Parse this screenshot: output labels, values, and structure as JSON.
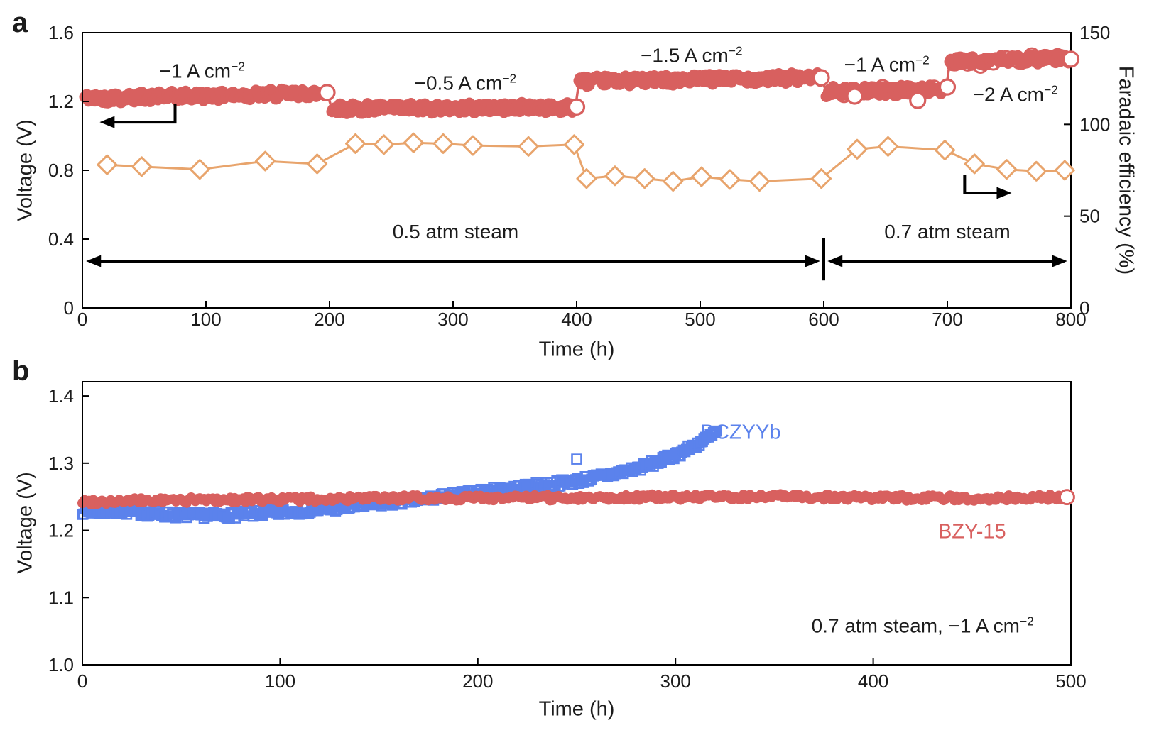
{
  "figure": {
    "background": "#ffffff"
  },
  "colors": {
    "voltage": "#d8605f",
    "faradaic": "#e8a46c",
    "bczyyb": "#5b82ec",
    "bzy15": "#d8605f",
    "axis": "#000000",
    "text": "#1c1c1c"
  },
  "chart_data": {
    "panel_a": {
      "panel_label": "a",
      "type": "scatter",
      "xlabel": "Time (h)",
      "x_range": [
        0,
        800
      ],
      "x_tick_values": [
        0,
        100,
        200,
        300,
        400,
        500,
        600,
        700,
        800
      ],
      "x_tick_labels": [
        "0",
        "100",
        "200",
        "300",
        "400",
        "500",
        "600",
        "700",
        "800"
      ],
      "ylabel_left": "Voltage (V)",
      "y_left_range": [
        0,
        1.6
      ],
      "y_left_tick_values": [
        0,
        0.4,
        0.8,
        1.2,
        1.6
      ],
      "y_left_tick_labels": [
        "0",
        "0.4",
        "0.8",
        "1.2",
        "1.6"
      ],
      "ylabel_right": "Faradaic efficiency (%)",
      "y_right_range": [
        0,
        150
      ],
      "y_right_tick_values": [
        0,
        50,
        100,
        150
      ],
      "y_right_tick_labels": [
        "0",
        "50",
        "100",
        "150"
      ],
      "voltage_color": "#d8605f",
      "fe_color": "#e8a46c",
      "voltage_segments": [
        {
          "label_text": "−1 A cm",
          "label_sup": "−2",
          "label_t": 97,
          "label_v": 1.377,
          "t_start": 2,
          "t_end": 198,
          "v_start": 1.218,
          "v_end": 1.248,
          "rings": false
        },
        {
          "label_text": "−0.5 A cm",
          "label_sup": "−2",
          "label_t": 310,
          "label_v": 1.307,
          "t_start": 202,
          "t_end": 399,
          "v_start": 1.157,
          "v_end": 1.166,
          "rings": false
        },
        {
          "label_text": "−1.5 A cm",
          "label_sup": "−2",
          "label_t": 493,
          "label_v": 1.468,
          "t_start": 402,
          "t_end": 598,
          "v_start": 1.318,
          "v_end": 1.338,
          "rings": false
        },
        {
          "label_text": "−1 A cm",
          "label_sup": "−2",
          "label_t": 651,
          "label_v": 1.415,
          "t_start": 602,
          "t_end": 699,
          "v_start": 1.256,
          "v_end": 1.272,
          "rings": true
        },
        {
          "label_text": "−2 A cm",
          "label_sup": "−2",
          "label_t": 755,
          "label_v": 1.243,
          "t_start": 702,
          "t_end": 799,
          "v_start": 1.43,
          "v_end": 1.452,
          "rings": true
        }
      ],
      "open_markers": [
        [
          198,
          1.252
        ],
        [
          400,
          1.168
        ],
        [
          598,
          1.338
        ],
        [
          625,
          1.231
        ],
        [
          676,
          1.206
        ],
        [
          700,
          1.284
        ],
        [
          800,
          1.446
        ]
      ],
      "faradaic_points": [
        [
          20,
          78
        ],
        [
          48,
          77
        ],
        [
          95,
          75.5
        ],
        [
          148,
          80
        ],
        [
          190,
          78.5
        ],
        [
          221,
          89.5
        ],
        [
          244,
          89
        ],
        [
          268,
          90
        ],
        [
          292,
          89.5
        ],
        [
          316,
          88.5
        ],
        [
          361,
          88
        ],
        [
          398,
          89
        ],
        [
          408,
          70.5
        ],
        [
          431,
          72
        ],
        [
          455,
          70.5
        ],
        [
          478,
          69
        ],
        [
          501,
          71.5
        ],
        [
          524,
          70
        ],
        [
          548,
          69
        ],
        [
          598,
          70.5
        ],
        [
          627,
          86.5
        ],
        [
          652,
          88
        ],
        [
          698,
          86
        ],
        [
          722,
          78.5
        ],
        [
          748,
          75.5
        ],
        [
          772,
          74.5
        ],
        [
          795,
          75
        ]
      ],
      "steam_regions": [
        {
          "label": "0.5 atm steam",
          "t_start": 3,
          "t_end": 597,
          "label_t": 302
        },
        {
          "label": "0.7 atm steam",
          "t_start": 603,
          "t_end": 797,
          "label_t": 700
        }
      ],
      "steam_arrow_v": 0.272,
      "steam_label_v": 0.443,
      "steam_divider_t": 600,
      "axis_pointers": [
        {
          "name": "voltage-axis-pointer",
          "dir": "left",
          "corner_t": 75,
          "v_top": 1.185,
          "v_bottom": 1.08,
          "t_end": 14
        },
        {
          "name": "fe-axis-pointer",
          "dir": "right",
          "corner_t": 714,
          "v_top": 0.775,
          "v_bottom": 0.668,
          "t_end": 752
        }
      ]
    },
    "panel_b": {
      "panel_label": "b",
      "type": "scatter",
      "xlabel": "Time (h)",
      "x_range": [
        0,
        500
      ],
      "x_tick_values": [
        0,
        100,
        200,
        300,
        400,
        500
      ],
      "x_tick_labels": [
        "0",
        "100",
        "200",
        "300",
        "400",
        "500"
      ],
      "ylabel": "Voltage (V)",
      "y_range": [
        1.0,
        1.4
      ],
      "y_tick_values": [
        1.0,
        1.1,
        1.2,
        1.3,
        1.4
      ],
      "y_tick_labels": [
        "1.0",
        "1.1",
        "1.2",
        "1.3",
        "1.4"
      ],
      "condition_text": "0.7 atm steam, −1 A cm",
      "condition_sup": "−2",
      "condition_t": 425,
      "condition_v": 1.058,
      "series": [
        {
          "name": "BCZYYb",
          "color": "#5b82ec",
          "marker": "open-square",
          "label_t": 333,
          "label_v": 1.345,
          "points": [
            [
              0,
              1.2285
            ],
            [
              25,
              1.228
            ],
            [
              40,
              1.2235
            ],
            [
              70,
              1.222
            ],
            [
              100,
              1.2265
            ],
            [
              130,
              1.2335
            ],
            [
              160,
              1.2425
            ],
            [
              175,
              1.2475
            ],
            [
              200,
              1.2565
            ],
            [
              225,
              1.265
            ],
            [
              250,
              1.2735
            ],
            [
              270,
              1.2845
            ],
            [
              285,
              1.2955
            ],
            [
              300,
              1.312
            ],
            [
              310,
              1.3265
            ],
            [
              317,
              1.3385
            ],
            [
              321,
              1.347
            ]
          ],
          "outlier": [
            250,
            1.306
          ]
        },
        {
          "name": "BZY-15",
          "color": "#d8605f",
          "marker": "filled-circle",
          "label_t": 450,
          "label_v": 1.197,
          "points": [
            [
              0,
              1.2425
            ],
            [
              40,
              1.2445
            ],
            [
              80,
              1.246
            ],
            [
              120,
              1.2465
            ],
            [
              160,
              1.248
            ],
            [
              200,
              1.2485
            ],
            [
              240,
              1.2485
            ],
            [
              280,
              1.2495
            ],
            [
              320,
              1.2495
            ],
            [
              360,
              1.25
            ],
            [
              400,
              1.2485
            ],
            [
              440,
              1.248
            ],
            [
              480,
              1.2485
            ],
            [
              500,
              1.2505
            ]
          ],
          "end_marker": [
            498,
            1.2495
          ]
        }
      ]
    }
  }
}
